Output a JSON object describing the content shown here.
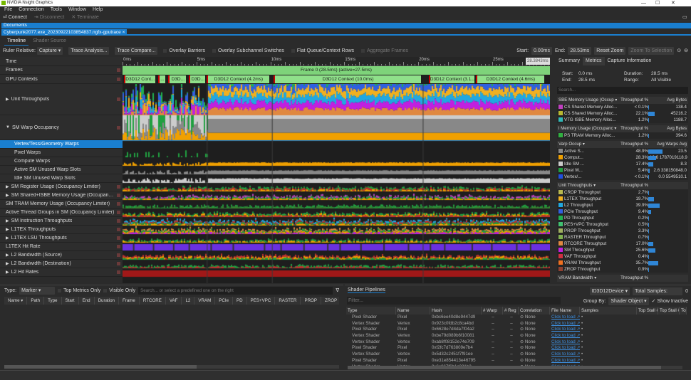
{
  "app": {
    "title": "NVIDIA Nsight Graphics",
    "min": "—",
    "max": "☐",
    "close": "✕"
  },
  "menu": [
    "File",
    "Connection",
    "Tools",
    "Window",
    "Help"
  ],
  "toolbar": {
    "connect": "⏎ Connect",
    "disconnect": "⇥ Disconnect",
    "terminate": "✕ Terminate"
  },
  "documents": {
    "label": "Documents",
    "tab": "Cyberpunk2077.exe_20230922103854837.ngfx-gputrace ×"
  },
  "view_tabs": [
    "Timeline",
    "Shader Source"
  ],
  "options": {
    "ruler_label": "Ruler Relative:",
    "ruler_value": "Capture ▾",
    "trace_analysis": "Trace Analysis...",
    "trace_compare": "Trace Compare...",
    "overlay_barriers": "Overlay Barriers",
    "overlay_subchannel": "Overlay Subchannel Switches",
    "flat_queue": "Flat Queue/Context Rows",
    "aggregate": "Aggregate Frames",
    "start_label": "Start:",
    "start_value": "0.00ms",
    "end_label": "End:",
    "end_value": "28.53ms",
    "reset_zoom": "Reset Zoom",
    "zoom_selection": "Zoom To Selection"
  },
  "ruler": {
    "ticks": [
      {
        "ms": 0,
        "label": "0ms"
      },
      {
        "ms": 5,
        "label": "5ms"
      },
      {
        "ms": 10,
        "label": "10ms"
      },
      {
        "ms": 15,
        "label": "15ms"
      },
      {
        "ms": 20,
        "label": "20ms"
      },
      {
        "ms": 25,
        "label": "25ms"
      }
    ],
    "total_ms": 28.9,
    "end_marker": "28.3843ms"
  },
  "frame_label": "Frame 0 (28.5ms) (active=27.5ms)",
  "contexts": [
    {
      "label": "D3D12 Cont...",
      "start": 0.1,
      "end": 2.2
    },
    {
      "label": "...",
      "start": 2.4,
      "end": 2.9
    },
    {
      "label": "D3D...",
      "start": 3.1,
      "end": 4.3
    },
    {
      "label": "D3D...",
      "start": 4.5,
      "end": 5.6
    },
    {
      "label": "D3D12 Context (4.2ms)",
      "start": 5.7,
      "end": 9.9
    },
    {
      "label": "D3D12 Context (10.0ms)",
      "start": 10.2,
      "end": 20.2
    },
    {
      "label": "D3D12 Context (3.1...",
      "start": 20.7,
      "end": 23.8
    },
    {
      "label": "D3D12 Context (4.6ms)",
      "start": 23.9,
      "end": 28.5
    }
  ],
  "rows": [
    {
      "label": "Time",
      "type": "plain"
    },
    {
      "label": "Frames",
      "type": "plain"
    },
    {
      "label": "GPU Contexts",
      "type": "plain"
    },
    {
      "label": "Unit Throughputs",
      "type": "collapsed"
    },
    {
      "label": "SM Warp Occupancy",
      "type": "expanded"
    },
    {
      "label": "Vertex/Tess/Geometry Warps",
      "type": "sub",
      "selected": true
    },
    {
      "label": "Pixel Warps",
      "type": "sub"
    },
    {
      "label": "Compute Warps",
      "type": "sub"
    },
    {
      "label": "Active SM Unused Warp Slots",
      "type": "sub"
    },
    {
      "label": "Idle SM Unused Warp Slots",
      "type": "sub"
    },
    {
      "label": "SM Register Usage (Occupancy Limiter)",
      "type": "collapsed"
    },
    {
      "label": "SM Shared+ISBE Memory Usage (Occupancy Limit...",
      "type": "collapsed"
    },
    {
      "label": "SM TRAM Memory Usage (Occupancy Limiter)",
      "type": "plain"
    },
    {
      "label": "Active Thread Groups in SM (Occupancy Limiter)",
      "type": "plain"
    },
    {
      "label": "SM Instruction Throughputs",
      "type": "collapsed"
    },
    {
      "label": "L1TEX Throughputs",
      "type": "collapsed"
    },
    {
      "label": "L1TEX LSU Throughputs",
      "type": "collapsed"
    },
    {
      "label": "L1TEX Hit Rate",
      "type": "plain"
    },
    {
      "label": "L2 Bandwidth (Source)",
      "type": "collapsed"
    },
    {
      "label": "L2 Bandwidth (Destination)",
      "type": "collapsed"
    },
    {
      "label": "L2 Hit Rates",
      "type": "collapsed"
    }
  ],
  "right_panel": {
    "tabs": [
      "Summary",
      "Metrics",
      "Capture Information"
    ],
    "start_label": "Start:",
    "start": "0.0 ms",
    "end_label": "End:",
    "end": "28.5 ms",
    "duration_label": "Duration:",
    "duration": "28.5 ms",
    "range_label": "Range:",
    "range": "All Visible",
    "search_placeholder": "Search...",
    "tables": [
      {
        "headers": [
          "SBE Memory Usage (Occup ▾",
          "Throughput %",
          "Avg Bytes"
        ],
        "rows": [
          {
            "name": "CS Shared Memory Alloc...",
            "color": "#c040c0",
            "pct": "< 0.1%",
            "v": 0.1,
            "avg": "138.4"
          },
          {
            "name": "CS Shared Memory Alloc...",
            "color": "#b8b830",
            "pct": "22.1%",
            "v": 22.1,
            "avg": "45216.2"
          },
          {
            "name": "VTG ISBE Memory Alloc...",
            "color": "#30b8b8",
            "pct": "1.2%",
            "v": 1.2,
            "avg": "1188.7"
          }
        ]
      },
      {
        "headers": [
          "l Memory Usage (Occupanc ▾",
          "Throughput %",
          "Avg Bytes"
        ],
        "rows": [
          {
            "name": "PS TRAM Memory Alloc...",
            "color": "#30b040",
            "pct": "1.2%",
            "v": 1.2,
            "avg": "394.6"
          }
        ]
      },
      {
        "headers": [
          "Varp Occup ▾",
          "Throughput %",
          "Avg Warps   Avg"
        ],
        "rows": [
          {
            "name": "Active S...",
            "color": "#888888",
            "pct": "48.9%",
            "v": 48.9,
            "avg": "23.5"
          },
          {
            "name": "Comput...",
            "color": "#f0a000",
            "pct": "28.3%",
            "v": 28.3,
            "avg": "13.6 1787019118.9"
          },
          {
            "name": "Idle SM ...",
            "color": "#cccccc",
            "pct": "17.4%",
            "v": 17.4,
            "avg": "8.3"
          },
          {
            "name": "Pixel W...",
            "color": "#20a040",
            "pct": "5.4%",
            "v": 5.4,
            "avg": "2.6  338150848.0"
          },
          {
            "name": "Vertex/...",
            "color": "#2050e0",
            "pct": "< 0.1%",
            "v": 0.1,
            "avg": "0.0    5549510.1"
          }
        ]
      },
      {
        "headers": [
          "Unit Throughputs ▾",
          "Throughput %",
          ""
        ],
        "rows": [
          {
            "name": "CROP Throughput",
            "color": "#b8b850",
            "pct": "2.7%",
            "v": 2.7,
            "avg": ""
          },
          {
            "name": "L1TEX Throughput",
            "color": "#f0b020",
            "pct": "19.7%",
            "v": 19.7,
            "avg": ""
          },
          {
            "name": "L2 Throughput",
            "color": "#20a8e0",
            "pct": "39.9%",
            "v": 39.9,
            "avg": ""
          },
          {
            "name": "PCIe Throughput",
            "color": "#3060e0",
            "pct": "9.4%",
            "v": 9.4,
            "avg": ""
          },
          {
            "name": "PD Throughput",
            "color": "#20b050",
            "pct": "0.2%",
            "v": 0.2,
            "avg": ""
          },
          {
            "name": "PES+VPC Throughput",
            "color": "#40c070",
            "pct": "0.5%",
            "v": 0.5,
            "avg": ""
          },
          {
            "name": "PROP Throughput",
            "color": "#a0b060",
            "pct": "3.3%",
            "v": 3.3,
            "avg": ""
          },
          {
            "name": "RASTER Throughput",
            "color": "#80b050",
            "pct": "0.7%",
            "v": 0.7,
            "avg": ""
          },
          {
            "name": "RTCORE Throughput",
            "color": "#e08840",
            "pct": "17.0%",
            "v": 17.0,
            "avg": ""
          },
          {
            "name": "SM Throughput",
            "color": "#c020e0",
            "pct": "25.6%",
            "v": 25.6,
            "avg": ""
          },
          {
            "name": "VAF Throughput",
            "color": "#d03040",
            "pct": "0.4%",
            "v": 0.4,
            "avg": ""
          },
          {
            "name": "VRAM Throughput",
            "color": "#f07020",
            "pct": "35.7%",
            "v": 35.7,
            "avg": ""
          },
          {
            "name": "ZROP Throughput",
            "color": "#904030",
            "pct": "0.9%",
            "v": 0.9,
            "avg": ""
          }
        ]
      },
      {
        "headers": [
          "VRAM Bandwidth ▾",
          "Throughput %",
          ""
        ],
        "rows": []
      }
    ]
  },
  "bottom_left": {
    "type_label": "Type:",
    "type_value": "Marker ▾",
    "top_metrics": "Top Metrics Only",
    "visible_only": "Visible Only",
    "search_placeholder": "Search... or select a predefined one on the right",
    "filter_icon": "∇",
    "columns": [
      "Name ▾",
      "Path",
      "Type",
      "Start",
      "End",
      "Duration",
      "Frame",
      "RTCORE",
      "VAF",
      "L2",
      "VRAM",
      "PCIe",
      "PD",
      "PES+VPC",
      "RASTER",
      "PROP",
      "ZROP"
    ]
  },
  "bottom_right": {
    "tab": "Shader Pipelines",
    "device": "ID3D12Device ▾",
    "total_samples_label": "Total Samples:",
    "total_samples": "0",
    "filter_placeholder": "Filter...",
    "group_by_label": "Group By:",
    "group_by": "Shader Object ▾",
    "show_inactive": "✓ Show Inactive",
    "columns": [
      "Type",
      "Name",
      "Hash",
      "# Warp",
      "# Reg",
      "Correlation",
      "File Name",
      "Samples",
      "Top Stall #1",
      "Top Stall #2",
      "Top Stal"
    ],
    "rows": [
      {
        "type": "Pixel Shader",
        "name": "Pixel",
        "hash": "0xbc6ee40d8e9447d9"
      },
      {
        "type": "Vertex Shader",
        "name": "Vertex",
        "hash": "0x923c0fdb2c8ca4bd"
      },
      {
        "type": "Pixel Shader",
        "name": "Pixel",
        "hash": "0x6628e7d4da7f04a2"
      },
      {
        "type": "Vertex Shader",
        "name": "Vertex",
        "hash": "0xbe79d089b6f10081"
      },
      {
        "type": "Vertex Shader",
        "name": "Vertex",
        "hash": "0xab8f08152e74e709"
      },
      {
        "type": "Pixel Shader",
        "name": "Pixel",
        "hash": "0xf2fc7d763809e7b4"
      },
      {
        "type": "Vertex Shader",
        "name": "Vertex",
        "hash": "0x5d32c2451f7f91ee"
      },
      {
        "type": "Pixel Shader",
        "name": "Pixel",
        "hash": "0xe31e854413e46795"
      },
      {
        "type": "Vertex Shader",
        "name": "Vertex",
        "hash": "0x6c867f6b1c021b2"
      }
    ],
    "dash": "–",
    "correlation": "⊝ None",
    "file": "Click to load ↗",
    "sample": "•"
  },
  "palette": {
    "accent": "#1a7fd0",
    "frame": "#7ed37a",
    "context": "#8fe08a",
    "unit": [
      "#e08840",
      "#c020e0",
      "#20a8e0",
      "#f0b020",
      "#3060e0",
      "#20b050"
    ],
    "warp": [
      "#cccccc",
      "#888888",
      "#f0a000",
      "#20a040"
    ]
  }
}
